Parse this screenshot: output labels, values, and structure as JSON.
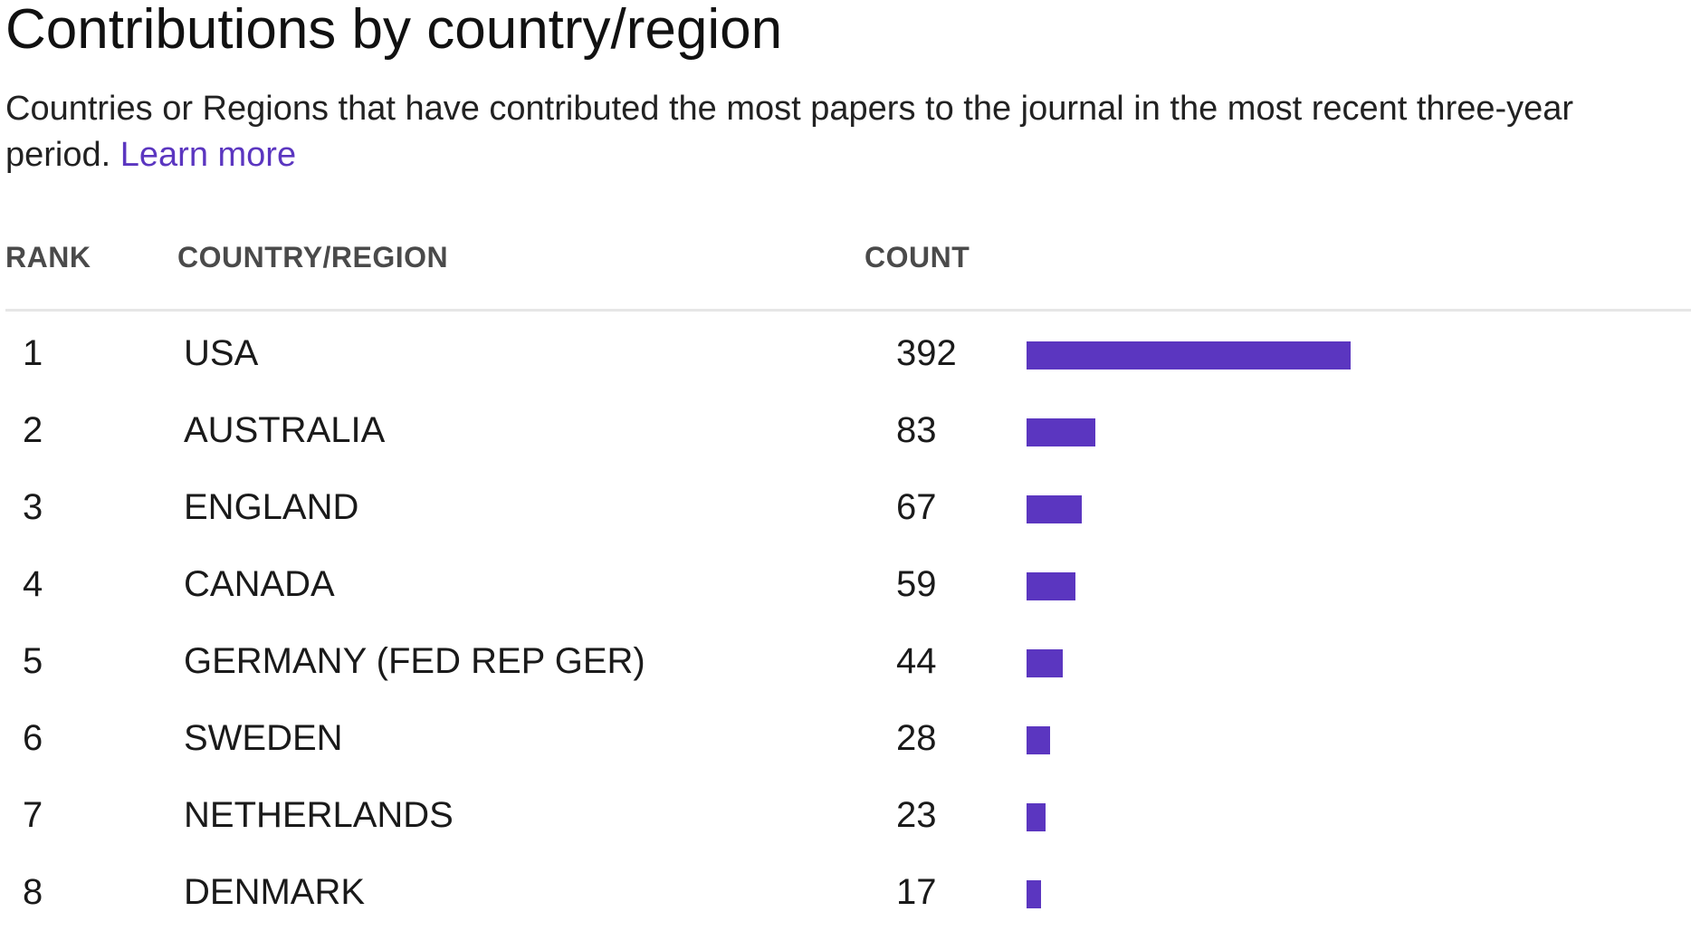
{
  "title": "Contributions by country/region",
  "description": "Countries or Regions that have contributed the most papers to the journal in the most recent three-year period.",
  "learn_more": "Learn more",
  "accent_color": "#5b36c0",
  "chart_data": {
    "type": "bar",
    "orientation": "horizontal",
    "columns": [
      "RANK",
      "COUNTRY/REGION",
      "COUNT"
    ],
    "categories": [
      "USA",
      "AUSTRALIA",
      "ENGLAND",
      "CANADA",
      "GERMANY (FED REP GER)",
      "SWEDEN",
      "NETHERLANDS",
      "DENMARK"
    ],
    "ranks": [
      "1",
      "2",
      "3",
      "4",
      "5",
      "6",
      "7",
      "8"
    ],
    "values": [
      392,
      83,
      67,
      59,
      44,
      28,
      23,
      17
    ],
    "xlim": [
      0,
      392
    ],
    "grid": false,
    "legend": "none"
  }
}
